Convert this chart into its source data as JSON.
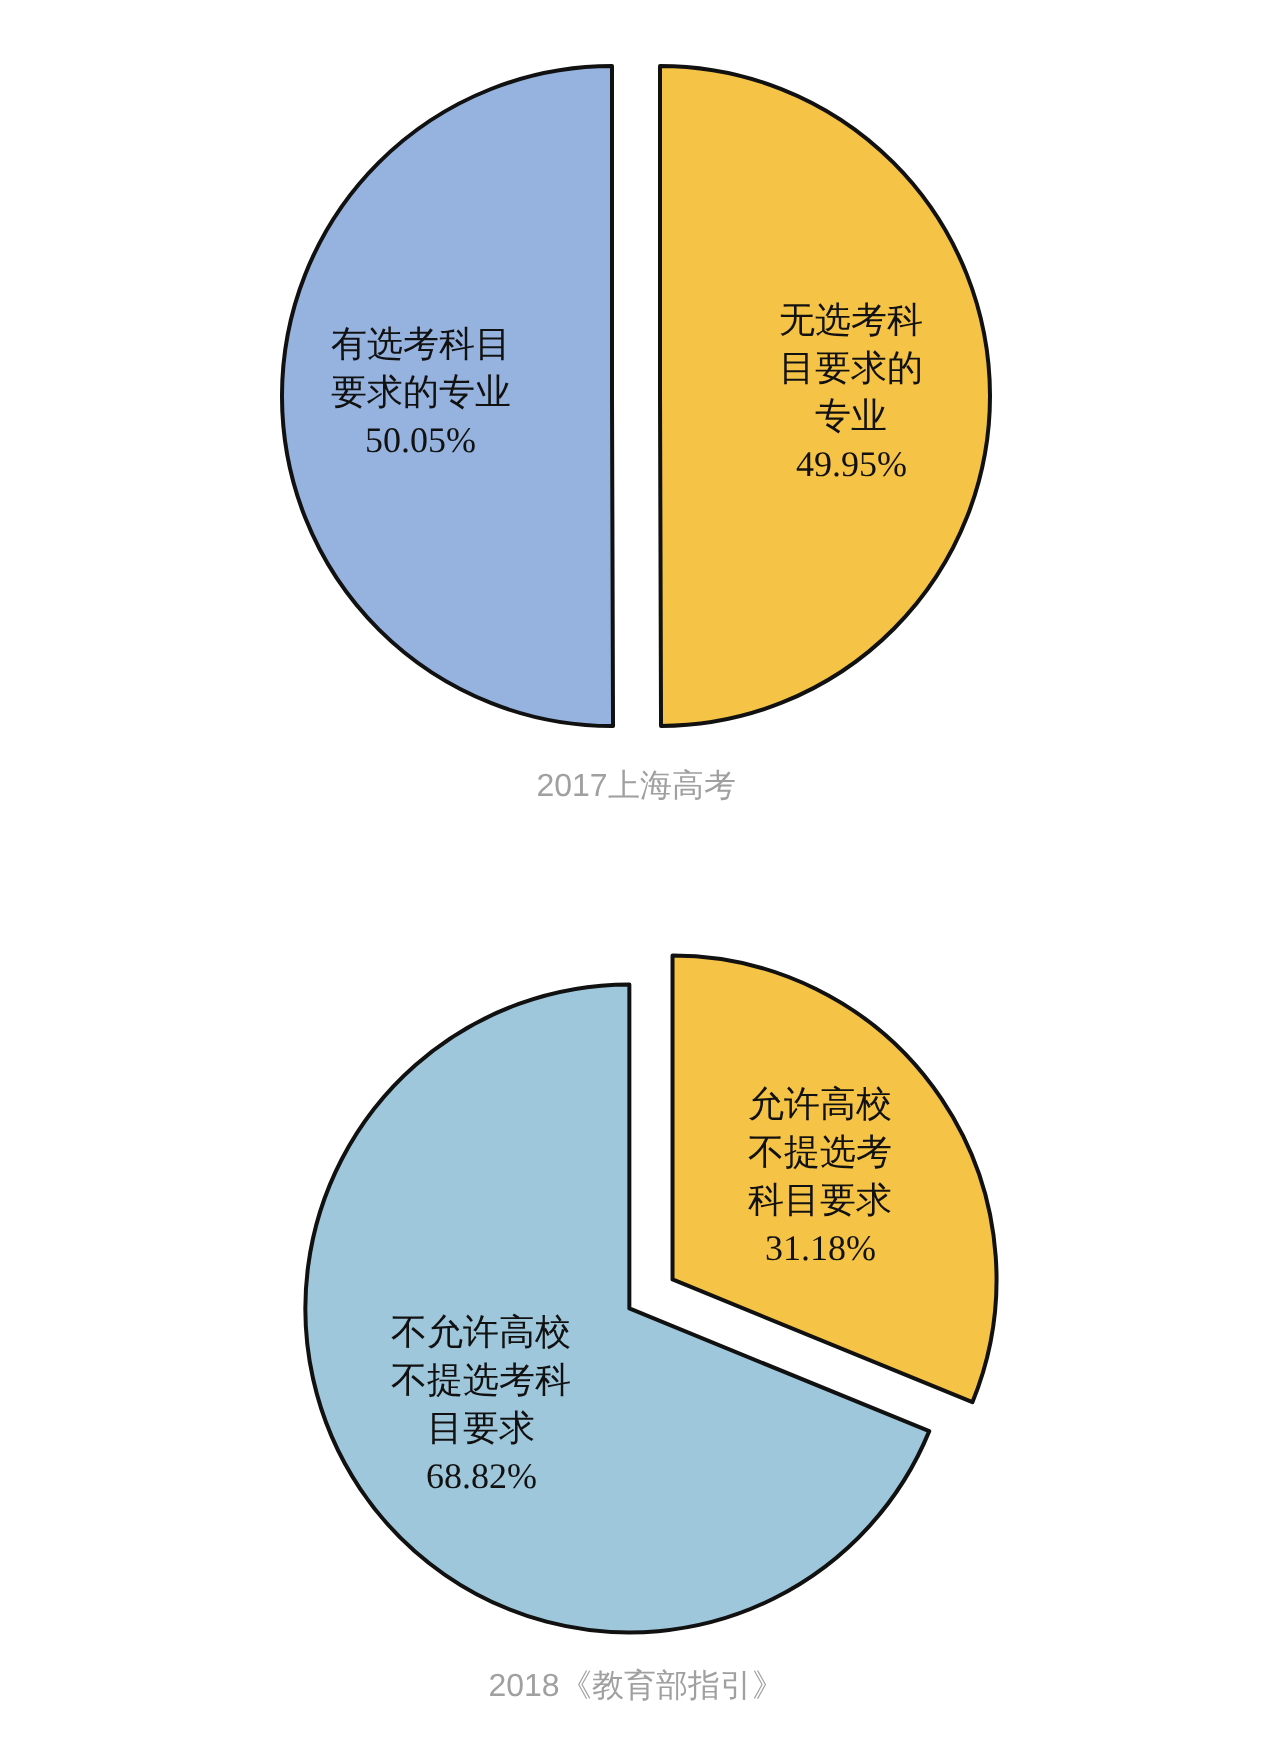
{
  "chart_data": [
    {
      "type": "pie",
      "title": "2017上海高考",
      "categories": [
        "有选考科目要求的专业",
        "无选考科目要求的专业"
      ],
      "values": [
        50.05,
        49.95
      ],
      "colors": [
        "#95b3de",
        "#f5c345"
      ],
      "value_labels": [
        "50.05%",
        "49.95%"
      ]
    },
    {
      "type": "pie",
      "title": "2018《教育部指引》",
      "categories": [
        "不允许高校不提选考科目要求",
        "允许高校不提选考科目要求"
      ],
      "values": [
        68.82,
        31.18
      ],
      "colors": [
        "#9fc7db",
        "#f5c345"
      ],
      "value_labels": [
        "68.82%",
        "31.18%"
      ]
    }
  ]
}
